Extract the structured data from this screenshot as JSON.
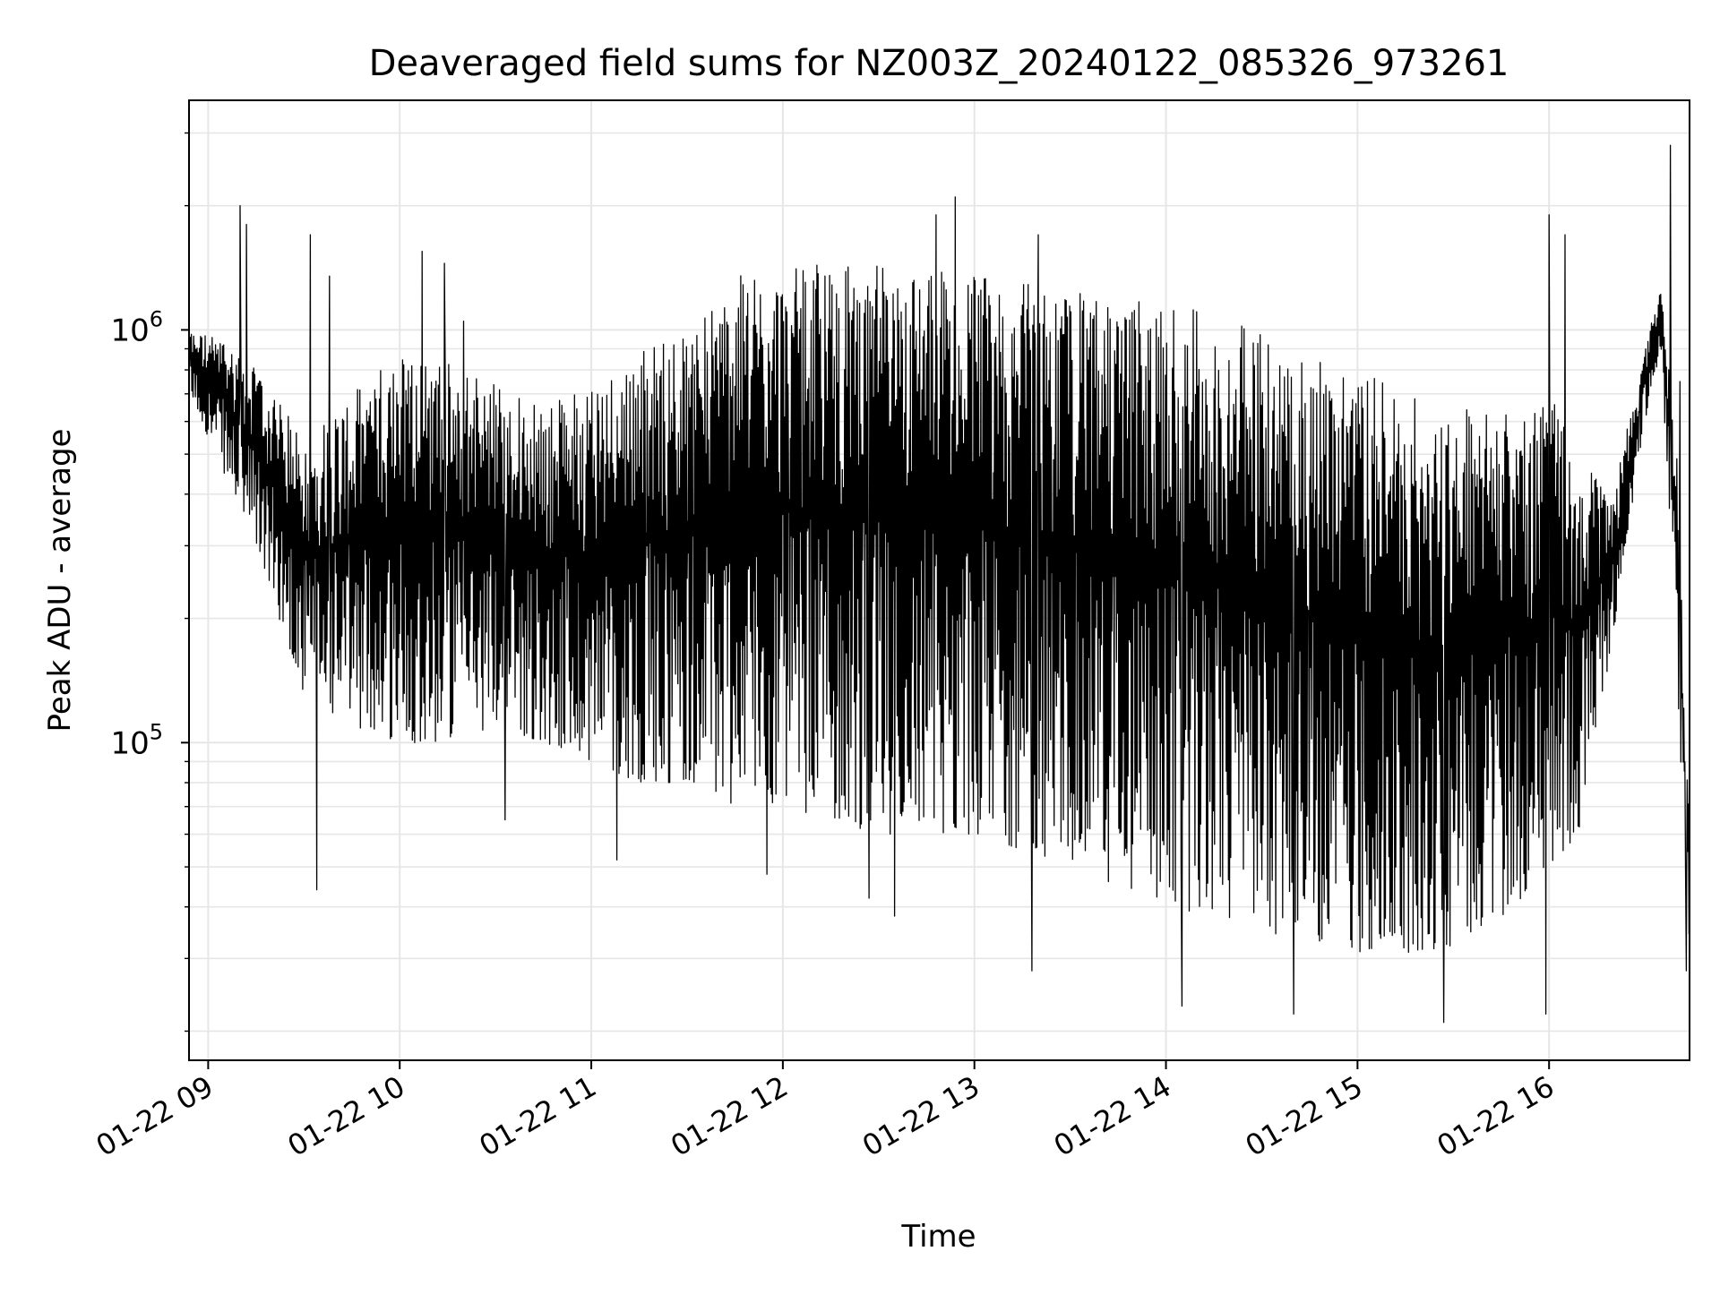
{
  "chart_data": {
    "type": "line",
    "title": "Deaveraged field sums for NZ003Z_20240122_085326_973261",
    "xlabel": "Time",
    "ylabel": "Peak ADU - average",
    "xlim": [
      "2024-01-22 08:54",
      "2024-01-22 16:44"
    ],
    "ylim": [
      17000,
      3600000
    ],
    "yscale": "log",
    "grid": true,
    "line_color": "#000000",
    "x_tick_labels": [
      "01-22 09",
      "01-22 10",
      "01-22 11",
      "01-22 12",
      "01-22 13",
      "01-22 14",
      "01-22 15",
      "01-22 16"
    ],
    "y_tick_labels": [
      {
        "base": "10",
        "exp": "5",
        "value": 100000
      },
      {
        "base": "10",
        "exp": "6",
        "value": 1000000
      }
    ],
    "envelope": {
      "times": [
        "08:54",
        "09:05",
        "09:15",
        "09:30",
        "09:45",
        "10:00",
        "10:15",
        "10:30",
        "10:45",
        "11:00",
        "11:15",
        "11:30",
        "11:45",
        "12:00",
        "12:15",
        "12:30",
        "12:45",
        "13:00",
        "13:15",
        "13:30",
        "13:45",
        "14:00",
        "14:15",
        "14:30",
        "14:45",
        "15:00",
        "15:15",
        "15:30",
        "15:45",
        "16:00",
        "16:10",
        "16:20",
        "16:30",
        "16:35",
        "16:40",
        "16:44"
      ],
      "upper": [
        1000000,
        950000,
        800000,
        550000,
        700000,
        900000,
        850000,
        750000,
        650000,
        750000,
        900000,
        1000000,
        1350000,
        1400000,
        1450000,
        1450000,
        1450000,
        1400000,
        1300000,
        1250000,
        1200000,
        1150000,
        1100000,
        1000000,
        900000,
        800000,
        700000,
        650000,
        650000,
        700000,
        500000,
        400000,
        900000,
        1300000,
        500000,
        60000
      ],
      "lower": [
        700000,
        450000,
        300000,
        130000,
        110000,
        100000,
        100000,
        110000,
        100000,
        90000,
        80000,
        80000,
        70000,
        70000,
        65000,
        60000,
        60000,
        60000,
        55000,
        50000,
        45000,
        40000,
        38000,
        35000,
        33000,
        31000,
        30000,
        32000,
        38000,
        45000,
        60000,
        180000,
        600000,
        900000,
        150000,
        30000
      ]
    },
    "spikes": [
      {
        "time": "09:10",
        "value": 2000000
      },
      {
        "time": "09:12",
        "value": 1800000
      },
      {
        "time": "09:38",
        "value": 1350000
      },
      {
        "time": "09:32",
        "value": 1700000
      },
      {
        "time": "10:07",
        "value": 1550000
      },
      {
        "time": "10:14",
        "value": 1450000
      },
      {
        "time": "10:20",
        "value": 1050000
      },
      {
        "time": "09:34",
        "value": 44000
      },
      {
        "time": "10:33",
        "value": 65000
      },
      {
        "time": "11:08",
        "value": 52000
      },
      {
        "time": "11:55",
        "value": 48000
      },
      {
        "time": "12:27",
        "value": 42000
      },
      {
        "time": "12:35",
        "value": 38000
      },
      {
        "time": "12:54",
        "value": 2100000
      },
      {
        "time": "12:48",
        "value": 1900000
      },
      {
        "time": "13:20",
        "value": 1700000
      },
      {
        "time": "13:18",
        "value": 28000
      },
      {
        "time": "14:05",
        "value": 23000
      },
      {
        "time": "14:40",
        "value": 22000
      },
      {
        "time": "15:27",
        "value": 21000
      },
      {
        "time": "15:59",
        "value": 22000
      },
      {
        "time": "16:00",
        "value": 1900000
      },
      {
        "time": "16:05",
        "value": 1700000
      },
      {
        "time": "16:38",
        "value": 2800000
      },
      {
        "time": "16:41",
        "value": 750000
      },
      {
        "time": "16:43",
        "value": 28000
      }
    ]
  }
}
